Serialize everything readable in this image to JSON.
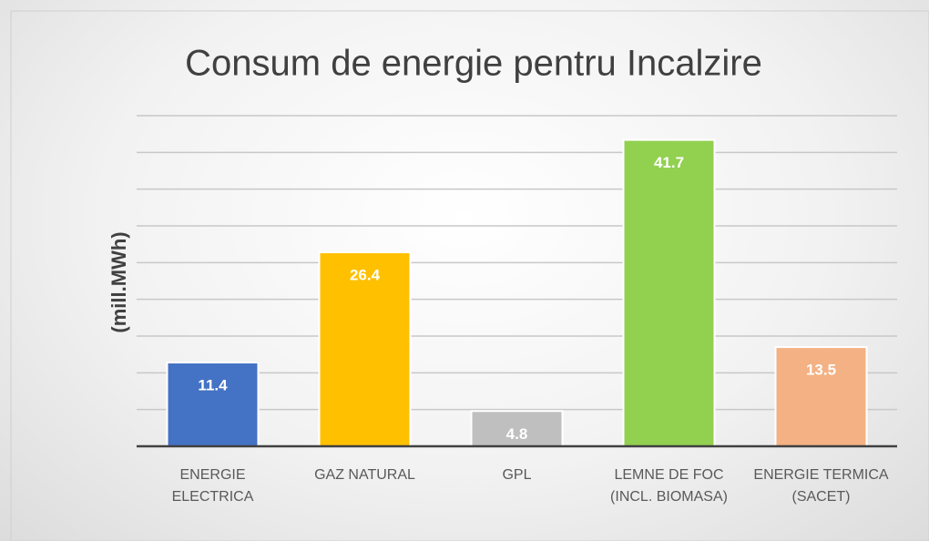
{
  "chart_data": {
    "type": "bar",
    "title": "Consum de energie pentru Incalzire",
    "y_label": "(mill.MWh)",
    "categories": [
      "ENERGIE ELECTRICA",
      "GAZ NATURAL",
      "GPL",
      "LEMNE DE FOC (INCL. BIOMASA)",
      "ENERGIE TERMICA (SACET)"
    ],
    "values": [
      11.4,
      26.4,
      4.8,
      41.7,
      13.5
    ],
    "colors": [
      "#4472c4",
      "#ffc000",
      "#bfbfbf",
      "#92d050",
      "#f4b183"
    ],
    "ylim": [
      0,
      45
    ],
    "yticks": [
      0,
      5,
      10,
      15,
      20,
      25,
      30,
      35,
      40,
      45
    ],
    "grid": true
  }
}
